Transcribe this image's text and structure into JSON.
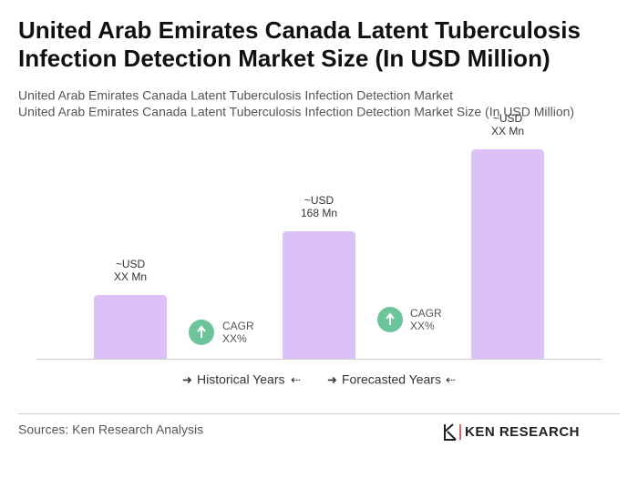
{
  "chart_data": {
    "type": "bar",
    "title": [
      "United Arab Emirates Canada Latent Tuberculosis",
      "Infection Detection Market Size (In USD Million)"
    ],
    "subtitle": [
      "United Arab Emirates Canada Latent Tuberculosis Infection Detection Market",
      "United Arab Emirates Canada Latent Tuberculosis Infection Detection Market Size (In USD Million)"
    ],
    "values": [
      84,
      168,
      276
    ],
    "value_labels": [
      [
        "~USD",
        "XX Mn"
      ],
      [
        "~USD",
        "168 Mn"
      ],
      [
        "~USD",
        "XX Mn"
      ]
    ],
    "color": "#dcc1f7",
    "annotations": [
      [
        "CAGR",
        "XX%"
      ],
      [
        "CAGR",
        "XX%"
      ]
    ],
    "legend": [
      "Historical Years",
      "Forecasted Years"
    ],
    "source": "Sources: Ken Research Analysis",
    "logo": "KEN RESEARCH"
  }
}
